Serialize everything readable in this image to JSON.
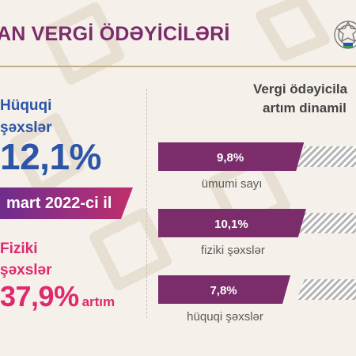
{
  "header": {
    "title": "AN VERGİ ÖDƏYİCİLƏRİ"
  },
  "left": {
    "legal_label_line1": "Hüquqi",
    "legal_label_line2": "şəxslər",
    "legal_value": "12,1%",
    "date_banner": "mart 2022-ci il",
    "physical_label_line1": "Fiziki",
    "physical_label_line2": "şəxslər",
    "physical_value": "37,9%",
    "physical_suffix": "artım"
  },
  "colors": {
    "purple": "#7b2c6b",
    "blue": "#2c55a8",
    "pink": "#e0286e",
    "gold": "#c2ae80",
    "hatch": "#b5b5b5"
  },
  "chart_data": {
    "type": "bar",
    "title": "Vergi ödəyicila artım dinamil",
    "categories": [
      "ümumi sayı",
      "fiziki şəxslər",
      "hüquqi şəxslər"
    ],
    "values": [
      9.8,
      10.1,
      7.8
    ],
    "value_labels": [
      "9,8%",
      "10,1%",
      "7,8%"
    ],
    "bar_color": "#7b2c6b",
    "grid": false
  }
}
